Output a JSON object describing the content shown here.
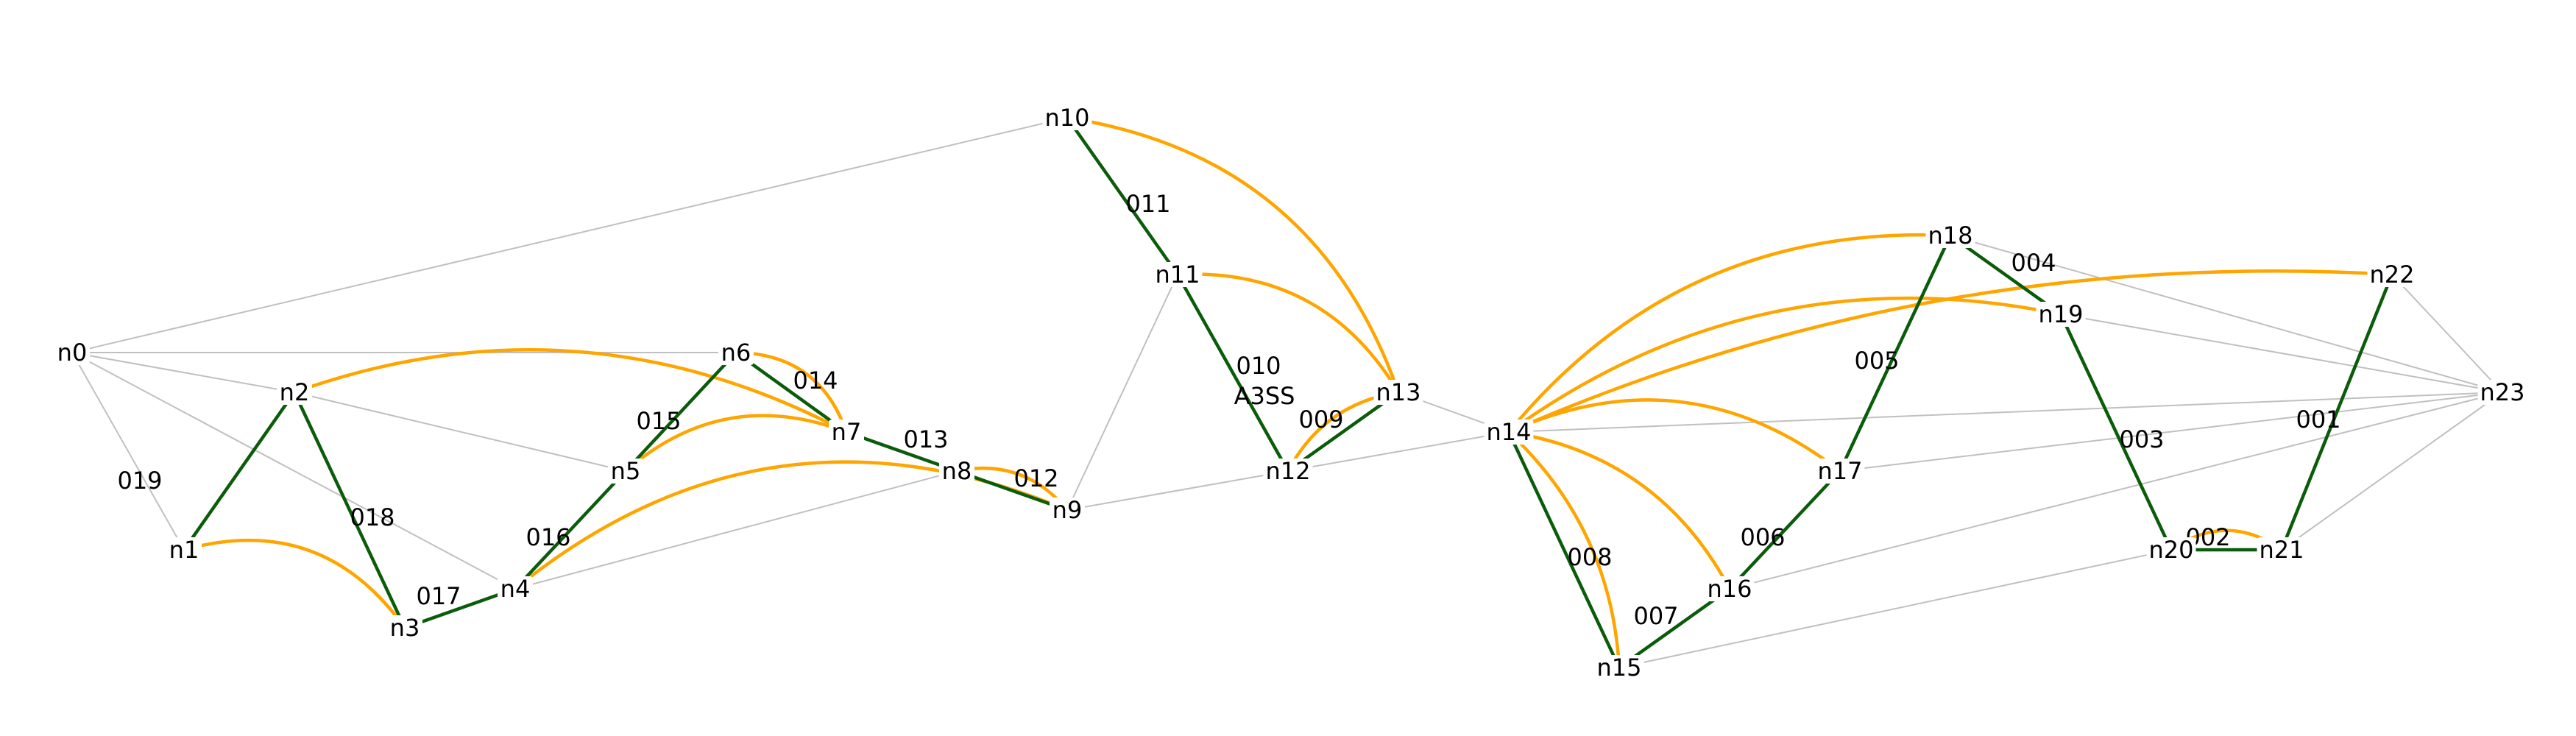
{
  "nodes": [
    {
      "id": "n0",
      "label": "n0"
    },
    {
      "id": "n1",
      "label": "n1"
    },
    {
      "id": "n2",
      "label": "n2"
    },
    {
      "id": "n3",
      "label": "n3"
    },
    {
      "id": "n4",
      "label": "n4"
    },
    {
      "id": "n5",
      "label": "n5"
    },
    {
      "id": "n6",
      "label": "n6"
    },
    {
      "id": "n7",
      "label": "n7"
    },
    {
      "id": "n8",
      "label": "n8"
    },
    {
      "id": "n9",
      "label": "n9"
    },
    {
      "id": "n10",
      "label": "n10"
    },
    {
      "id": "n11",
      "label": "n11"
    },
    {
      "id": "n12",
      "label": "n12"
    },
    {
      "id": "n13",
      "label": "n13"
    },
    {
      "id": "n14",
      "label": "n14"
    },
    {
      "id": "n15",
      "label": "n15"
    },
    {
      "id": "n16",
      "label": "n16"
    },
    {
      "id": "n17",
      "label": "n17"
    },
    {
      "id": "n18",
      "label": "n18"
    },
    {
      "id": "n19",
      "label": "n19"
    },
    {
      "id": "n20",
      "label": "n20"
    },
    {
      "id": "n21",
      "label": "n21"
    },
    {
      "id": "n22",
      "label": "n22"
    },
    {
      "id": "n23",
      "label": "n23"
    }
  ],
  "path_edges": [
    {
      "from": "n1",
      "to": "n2",
      "label": "019"
    },
    {
      "from": "n2",
      "to": "n3",
      "label": "018"
    },
    {
      "from": "n3",
      "to": "n4",
      "label": "017"
    },
    {
      "from": "n4",
      "to": "n5",
      "label": "016"
    },
    {
      "from": "n5",
      "to": "n6",
      "label": "015"
    },
    {
      "from": "n6",
      "to": "n7",
      "label": "014"
    },
    {
      "from": "n7",
      "to": "n8",
      "label": "013"
    },
    {
      "from": "n8",
      "to": "n9",
      "label": "012"
    },
    {
      "from": "n10",
      "to": "n11",
      "label": "011"
    },
    {
      "from": "n11",
      "to": "n12",
      "label": "010"
    },
    {
      "from": "n12",
      "to": "n13",
      "label": "009"
    },
    {
      "from": "n14",
      "to": "n15",
      "label": "008"
    },
    {
      "from": "n15",
      "to": "n16",
      "label": "007"
    },
    {
      "from": "n16",
      "to": "n17",
      "label": "006"
    },
    {
      "from": "n17",
      "to": "n18",
      "label": "005"
    },
    {
      "from": "n18",
      "to": "n19",
      "label": "004"
    },
    {
      "from": "n19",
      "to": "n20",
      "label": "003"
    },
    {
      "from": "n20",
      "to": "n21",
      "label": "002"
    },
    {
      "from": "n21",
      "to": "n22",
      "label": "001"
    }
  ],
  "annotations": [
    {
      "text": "A3SS",
      "near_edge": "010"
    }
  ],
  "arc_edges": [
    {
      "from": "n1",
      "to": "n3"
    },
    {
      "from": "n2",
      "to": "n7"
    },
    {
      "from": "n6",
      "to": "n7"
    },
    {
      "from": "n5",
      "to": "n7"
    },
    {
      "from": "n4",
      "to": "n9"
    },
    {
      "from": "n8",
      "to": "n9"
    },
    {
      "from": "n10",
      "to": "n13"
    },
    {
      "from": "n11",
      "to": "n13"
    },
    {
      "from": "n12",
      "to": "n13"
    },
    {
      "from": "n14",
      "to": "n18"
    },
    {
      "from": "n14",
      "to": "n22"
    },
    {
      "from": "n14",
      "to": "n19"
    },
    {
      "from": "n14",
      "to": "n17"
    },
    {
      "from": "n14",
      "to": "n16"
    },
    {
      "from": "n14",
      "to": "n15"
    },
    {
      "from": "n20",
      "to": "n21"
    }
  ],
  "background_edges": [
    {
      "from": "n0",
      "to": "n10"
    },
    {
      "from": "n0",
      "to": "n6"
    },
    {
      "from": "n0",
      "to": "n2"
    },
    {
      "from": "n0",
      "to": "n1"
    },
    {
      "from": "n0",
      "to": "n4"
    },
    {
      "from": "n2",
      "to": "n5"
    },
    {
      "from": "n4",
      "to": "n8"
    },
    {
      "from": "n9",
      "to": "n11"
    },
    {
      "from": "n9",
      "to": "n12"
    },
    {
      "from": "n12",
      "to": "n14"
    },
    {
      "from": "n13",
      "to": "n14"
    },
    {
      "from": "n14",
      "to": "n23"
    },
    {
      "from": "n15",
      "to": "n20"
    },
    {
      "from": "n16",
      "to": "n23"
    },
    {
      "from": "n17",
      "to": "n23"
    },
    {
      "from": "n18",
      "to": "n23"
    },
    {
      "from": "n19",
      "to": "n23"
    },
    {
      "from": "n21",
      "to": "n23"
    },
    {
      "from": "n22",
      "to": "n23"
    }
  ],
  "colors": {
    "path_edge": "#0a5c0a",
    "arc_edge": "#ffa500",
    "background_edge": "#c0c0c0"
  }
}
